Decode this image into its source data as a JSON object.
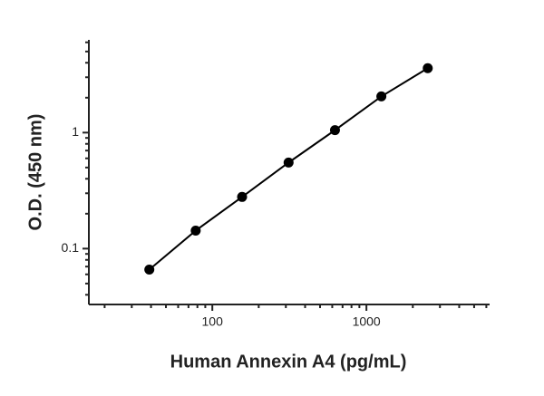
{
  "chart_data": {
    "type": "scatter",
    "x_label": "Human Annexin A4 (pg/mL)",
    "y_label": "O.D. (450 nm)",
    "x_scale": "log",
    "y_scale": "log",
    "xlim": [
      15.8,
      6300
    ],
    "ylim": [
      0.033,
      6.3
    ],
    "xticks": [
      100,
      1000
    ],
    "yticks": [
      0.1,
      1
    ],
    "xminorticks": [
      20,
      30,
      40,
      50,
      60,
      70,
      80,
      90,
      200,
      300,
      400,
      500,
      600,
      700,
      800,
      900,
      2000,
      3000,
      4000,
      5000,
      6000
    ],
    "yminorticks": [
      0.04,
      0.05,
      0.06,
      0.07,
      0.08,
      0.09,
      0.2,
      0.3,
      0.4,
      0.5,
      0.6,
      0.7,
      0.8,
      0.9,
      2,
      3,
      4,
      5,
      6
    ],
    "series": [
      {
        "color": "#000000",
        "x": [
          39,
          78,
          156,
          312.5,
          625,
          1250,
          2500
        ],
        "values": [
          0.066,
          0.143,
          0.279,
          0.552,
          1.05,
          2.05,
          3.59
        ]
      }
    ]
  }
}
